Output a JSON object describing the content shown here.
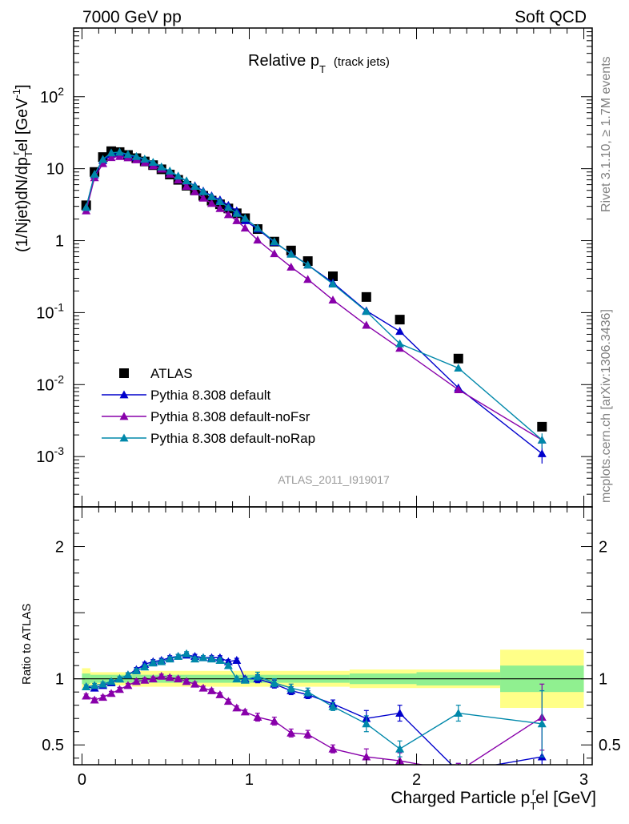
{
  "header": {
    "left": "7000 GeV pp",
    "right": "Soft QCD"
  },
  "side_labels": {
    "rivet": "Rivet 3.1.10, ≥ 1.7M events",
    "mcplots": "mcplots.cern.ch [arXiv:1306.3436]"
  },
  "chart_data": [
    {
      "type": "line",
      "title": "Relative p_T (track jets)",
      "title_main": "Relative p",
      "title_sub": "T",
      "title_paren": "(track jets)",
      "ylabel": "(1/Njet)dN/dp_T^rel [GeV^-1]",
      "ylabel_parts": {
        "a": "(1/Njet)dN/dp",
        "sub": "T",
        "sup": "r",
        "b": "el [GeV",
        "exp": "-1",
        "c": "]"
      },
      "y_scale": "log",
      "ylim": [
        0.0002,
        900
      ],
      "xlim": [
        -0.05,
        3.05
      ],
      "y_ticks": [
        {
          "base": "10",
          "exp": "2",
          "value": 100
        },
        {
          "base": "10",
          "exp": "",
          "value": 10
        },
        {
          "base": "1",
          "exp": "",
          "value": 1
        },
        {
          "base": "10",
          "exp": "-1",
          "value": 0.1
        },
        {
          "base": "10",
          "exp": "-2",
          "value": 0.01
        },
        {
          "base": "10",
          "exp": "-3",
          "value": 0.001
        }
      ],
      "watermark": "ATLAS_2011_I919017",
      "legend_position": "lower-left",
      "series": [
        {
          "name": "ATLAS",
          "marker": "square",
          "color": "#000000",
          "x": [
            0.025,
            0.075,
            0.125,
            0.175,
            0.225,
            0.275,
            0.325,
            0.375,
            0.425,
            0.475,
            0.525,
            0.575,
            0.625,
            0.675,
            0.725,
            0.775,
            0.825,
            0.875,
            0.925,
            0.975,
            1.05,
            1.15,
            1.25,
            1.35,
            1.5,
            1.7,
            1.9,
            2.25,
            2.75
          ],
          "y": [
            3.1,
            9.0,
            14.5,
            17.5,
            17.0,
            15.5,
            14.0,
            12.6,
            11.2,
            9.8,
            8.3,
            7.0,
            5.8,
            5.0,
            4.2,
            3.6,
            3.2,
            2.8,
            2.4,
            2.05,
            1.45,
            0.97,
            0.73,
            0.52,
            0.32,
            0.165,
            0.08,
            0.023,
            0.0026
          ]
        },
        {
          "name": "Pythia 8.308 default",
          "marker": "triangle",
          "color": "#0000cc",
          "x": [
            0.025,
            0.075,
            0.125,
            0.175,
            0.225,
            0.275,
            0.325,
            0.375,
            0.425,
            0.475,
            0.525,
            0.575,
            0.625,
            0.675,
            0.725,
            0.775,
            0.825,
            0.875,
            0.925,
            0.975,
            1.05,
            1.15,
            1.25,
            1.35,
            1.5,
            1.7,
            1.9,
            2.25,
            2.75
          ],
          "y": [
            2.9,
            8.2,
            13.0,
            15.8,
            16.4,
            15.3,
            14.4,
            13.3,
            12.0,
            10.5,
            9.2,
            7.9,
            6.7,
            5.8,
            4.9,
            4.2,
            3.7,
            3.1,
            2.6,
            1.9,
            1.45,
            0.95,
            0.66,
            0.46,
            0.26,
            0.106,
            0.055,
            0.009,
            0.0011
          ]
        },
        {
          "name": "Pythia 8.308 default-noFsr",
          "marker": "triangle",
          "color": "#8800aa",
          "x": [
            0.025,
            0.075,
            0.125,
            0.175,
            0.225,
            0.275,
            0.325,
            0.375,
            0.425,
            0.475,
            0.525,
            0.575,
            0.625,
            0.675,
            0.725,
            0.775,
            0.825,
            0.875,
            0.925,
            0.975,
            1.05,
            1.15,
            1.25,
            1.35,
            1.5,
            1.7,
            1.9,
            2.25,
            2.75
          ],
          "y": [
            2.6,
            7.5,
            11.8,
            14.3,
            14.8,
            14.2,
            13.3,
            12.2,
            11.0,
            9.9,
            8.4,
            7.0,
            5.7,
            4.8,
            3.9,
            3.3,
            2.8,
            2.3,
            1.9,
            1.5,
            1.02,
            0.66,
            0.43,
            0.29,
            0.15,
            0.067,
            0.032,
            0.0085,
            0.0017
          ]
        },
        {
          "name": "Pythia 8.308 default-noRap",
          "marker": "triangle",
          "color": "#0088aa",
          "x": [
            0.025,
            0.075,
            0.125,
            0.175,
            0.225,
            0.275,
            0.325,
            0.375,
            0.425,
            0.475,
            0.525,
            0.575,
            0.625,
            0.675,
            0.725,
            0.775,
            0.825,
            0.875,
            0.925,
            0.975,
            1.05,
            1.15,
            1.25,
            1.35,
            1.5,
            1.7,
            1.9,
            2.25,
            2.75
          ],
          "y": [
            2.9,
            8.4,
            13.5,
            16.6,
            17.0,
            15.8,
            14.8,
            13.6,
            12.3,
            10.6,
            9.3,
            7.9,
            6.8,
            5.7,
            4.8,
            4.1,
            3.5,
            2.9,
            2.4,
            2.05,
            1.5,
            0.97,
            0.65,
            0.46,
            0.25,
            0.104,
            0.037,
            0.017,
            0.0017
          ]
        }
      ]
    },
    {
      "type": "line",
      "ylabel": "Ratio to ATLAS",
      "xlabel": "Charged Particle p_T^rel [GeV]",
      "xlabel_parts": {
        "a": "Charged Particle p",
        "sub": "T",
        "sup": "r",
        "b": "el [GeV]"
      },
      "ylim": [
        0.35,
        2.3
      ],
      "xlim": [
        -0.05,
        3.05
      ],
      "x_ticks": [
        "0",
        "1",
        "2",
        "3"
      ],
      "y_ticks": [
        {
          "label": "2",
          "value": 2
        },
        {
          "label": "1",
          "value": 1
        },
        {
          "label": "0.5",
          "value": 0.5
        }
      ],
      "uncertainty_bands": [
        {
          "x0": 0.0,
          "x1": 0.05,
          "stat": 0.04,
          "tot": 0.08
        },
        {
          "x0": 0.05,
          "x1": 0.3,
          "stat": 0.03,
          "tot": 0.05
        },
        {
          "x0": 0.3,
          "x1": 1.0,
          "stat": 0.03,
          "tot": 0.06
        },
        {
          "x0": 1.0,
          "x1": 1.6,
          "stat": 0.03,
          "tot": 0.06
        },
        {
          "x0": 1.6,
          "x1": 2.0,
          "stat": 0.04,
          "tot": 0.07
        },
        {
          "x0": 2.0,
          "x1": 2.5,
          "stat": 0.05,
          "tot": 0.07
        },
        {
          "x0": 2.5,
          "x1": 3.0,
          "stat": 0.1,
          "tot": 0.22
        }
      ],
      "series": [
        {
          "name": "Pythia 8.308 default",
          "color": "#0000cc",
          "x": [
            0.025,
            0.075,
            0.125,
            0.175,
            0.225,
            0.275,
            0.325,
            0.375,
            0.425,
            0.475,
            0.525,
            0.575,
            0.625,
            0.675,
            0.725,
            0.775,
            0.825,
            0.875,
            0.925,
            0.975,
            1.05,
            1.15,
            1.25,
            1.35,
            1.5,
            1.7,
            1.9,
            2.25,
            2.75
          ],
          "y": [
            0.94,
            0.93,
            0.95,
            0.97,
            1.0,
            1.03,
            1.07,
            1.11,
            1.13,
            1.14,
            1.16,
            1.17,
            1.18,
            1.17,
            1.16,
            1.16,
            1.16,
            1.13,
            1.14,
            1.0,
            1.0,
            0.96,
            0.91,
            0.88,
            0.81,
            0.7,
            0.74,
            0.3,
            0.41
          ]
        },
        {
          "name": "Pythia 8.308 default-noFsr",
          "color": "#8800aa",
          "x": [
            0.025,
            0.075,
            0.125,
            0.175,
            0.225,
            0.275,
            0.325,
            0.375,
            0.425,
            0.475,
            0.525,
            0.575,
            0.625,
            0.675,
            0.725,
            0.775,
            0.825,
            0.875,
            0.925,
            0.975,
            1.05,
            1.15,
            1.25,
            1.35,
            1.5,
            1.7,
            1.9,
            2.25,
            2.75
          ],
          "y": [
            0.87,
            0.84,
            0.86,
            0.89,
            0.92,
            0.95,
            0.98,
            0.99,
            1.0,
            1.02,
            1.01,
            1.0,
            0.98,
            0.96,
            0.93,
            0.91,
            0.88,
            0.83,
            0.78,
            0.75,
            0.71,
            0.68,
            0.59,
            0.58,
            0.47,
            0.41,
            0.38,
            0.3,
            0.71
          ]
        },
        {
          "name": "Pythia 8.308 default-noRap",
          "color": "#0088aa",
          "x": [
            0.025,
            0.075,
            0.125,
            0.175,
            0.225,
            0.275,
            0.325,
            0.375,
            0.425,
            0.475,
            0.525,
            0.575,
            0.625,
            0.675,
            0.725,
            0.775,
            0.825,
            0.875,
            0.925,
            0.975,
            1.05,
            1.15,
            1.25,
            1.35,
            1.5,
            1.7,
            1.9,
            2.25,
            2.75
          ],
          "y": [
            0.94,
            0.95,
            0.96,
            0.98,
            1.0,
            1.03,
            1.06,
            1.09,
            1.12,
            1.13,
            1.15,
            1.17,
            1.19,
            1.15,
            1.16,
            1.15,
            1.14,
            1.1,
            1.0,
            0.99,
            1.02,
            0.97,
            0.93,
            0.9,
            0.79,
            0.66,
            0.47,
            0.74,
            0.66
          ]
        }
      ]
    }
  ]
}
